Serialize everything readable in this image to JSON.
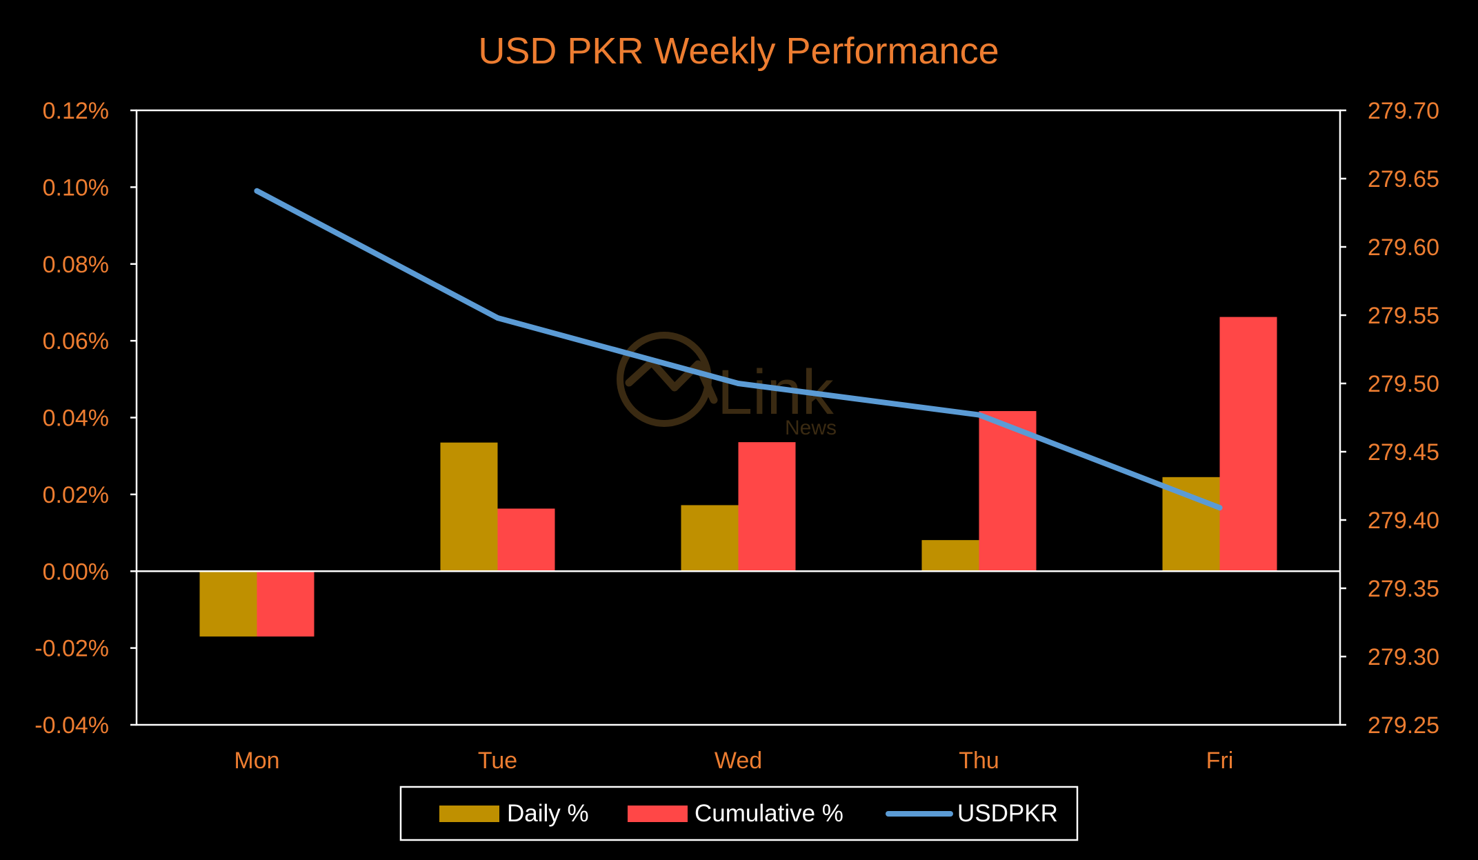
{
  "colors": {
    "background": "#000000",
    "accent_text": "#ed7d31",
    "axis": "#ffffff",
    "daily": "#bf9000",
    "cumulative": "#ff4747",
    "usdpkr": "#5b9bd5",
    "watermark": "#3a2a12"
  },
  "watermark": {
    "brand": "Link",
    "sub": "News"
  },
  "chart_data": {
    "type": "bar",
    "title": "USD PKR Weekly Performance",
    "categories": [
      "Mon",
      "Tue",
      "Wed",
      "Thu",
      "Fri"
    ],
    "series": [
      {
        "name": "Daily %",
        "type": "bar",
        "axis": "left",
        "values": [
          -0.017,
          0.0335,
          0.0172,
          0.0081,
          0.0245
        ]
      },
      {
        "name": "Cumulative %",
        "type": "bar",
        "axis": "left",
        "values": [
          -0.017,
          0.0163,
          0.0336,
          0.0417,
          0.0662
        ]
      },
      {
        "name": "USDPKR",
        "type": "line",
        "axis": "right",
        "values": [
          279.641,
          279.548,
          279.5,
          279.477,
          279.409
        ]
      }
    ],
    "left_axis": {
      "min": -0.04,
      "max": 0.12,
      "ticks": [
        "0.12%",
        "0.10%",
        "0.08%",
        "0.06%",
        "0.04%",
        "0.02%",
        "0.00%",
        "-0.02%",
        "-0.04%"
      ]
    },
    "right_axis": {
      "min": 279.25,
      "max": 279.7,
      "ticks": [
        "279.70",
        "279.65",
        "279.60",
        "279.55",
        "279.50",
        "279.45",
        "279.40",
        "279.35",
        "279.30",
        "279.25"
      ]
    },
    "grid": false,
    "legend": {
      "position": "bottom",
      "items": [
        "Daily %",
        "Cumulative %",
        "USDPKR"
      ]
    }
  }
}
